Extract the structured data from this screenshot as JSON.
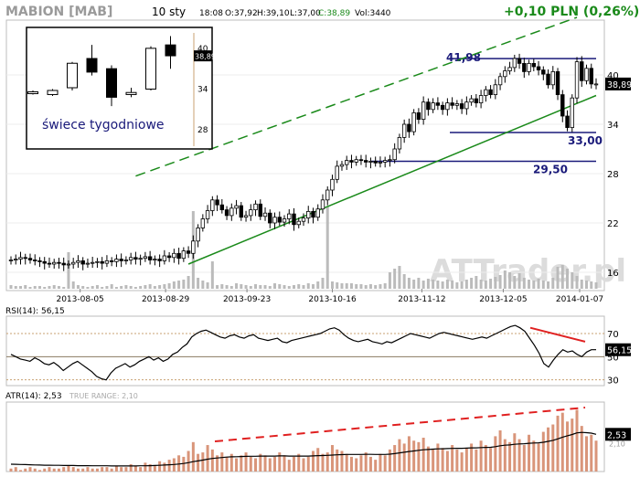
{
  "header": {
    "ticker": "MABION [MAB]",
    "interval": "10 sty",
    "time": "18:08",
    "open": "O:37,92",
    "high": "H:39,10",
    "low": "L:37,00",
    "close": "C:38,89",
    "volume": "Vol:3440",
    "change": "+0,10 PLN (0,26%)"
  },
  "colors": {
    "up_candle": "#ffffff",
    "down_candle": "#000000",
    "volume": "#bbbbbb",
    "trend_green": "#1a8a1a",
    "level_navy": "#1a1a7a",
    "rsi_line": "#000000",
    "rsi_trend": "#e02020",
    "atr_bars": "#d9957a",
    "atr_trend": "#e02020",
    "watermark": "#d8d8d8"
  },
  "watermark": "ATTrader.pl",
  "inset": {
    "caption": "świece tygodniowe",
    "last_label": "38,89",
    "ylim": [
      26,
      42
    ],
    "yticks": [
      "40",
      "34",
      "28"
    ],
    "candles": [
      {
        "o": 33.5,
        "h": 33.8,
        "l": 33.2,
        "c": 33.6
      },
      {
        "o": 33.2,
        "h": 34.0,
        "l": 33.0,
        "c": 33.8
      },
      {
        "o": 34.2,
        "h": 38.0,
        "l": 33.8,
        "c": 37.8
      },
      {
        "o": 38.5,
        "h": 40.5,
        "l": 36.0,
        "c": 36.5
      },
      {
        "o": 37.0,
        "h": 37.5,
        "l": 31.5,
        "c": 32.8
      },
      {
        "o": 33.2,
        "h": 34.2,
        "l": 32.8,
        "c": 33.5
      },
      {
        "o": 34.0,
        "h": 40.3,
        "l": 33.8,
        "c": 40.0
      },
      {
        "o": 40.5,
        "h": 41.8,
        "l": 37.0,
        "c": 38.9
      }
    ]
  },
  "chart_data": [
    {
      "type": "candlestick",
      "ylim": [
        14,
        46
      ],
      "yticks": [
        "40",
        "34",
        "28",
        "22",
        "16"
      ],
      "last_value_label": "38,89",
      "x_tick_labels": [
        "2013-08-05",
        "2013-08-29",
        "2013-09-23",
        "2013-10-16",
        "2013-11-12",
        "2013-12-05",
        "2014-01-07"
      ],
      "levels": [
        {
          "label": "41,98",
          "value": 41.98
        },
        {
          "label": "33,00",
          "value": 33.0
        },
        {
          "label": "29,50",
          "value": 29.5
        }
      ],
      "close": [
        17.5,
        17.6,
        17.8,
        17.7,
        17.5,
        17.4,
        17.3,
        17.1,
        17.0,
        17.2,
        17.1,
        16.9,
        17.0,
        17.2,
        17.4,
        17.0,
        17.1,
        17.2,
        17.3,
        17.1,
        17.4,
        17.3,
        17.6,
        17.4,
        17.5,
        17.8,
        17.6,
        17.7,
        17.9,
        17.5,
        17.6,
        17.4,
        18.0,
        17.8,
        18.3,
        17.7,
        18.6,
        18.3,
        19.8,
        21.4,
        22.5,
        23.5,
        24.8,
        24.2,
        23.6,
        22.9,
        23.8,
        24.1,
        22.7,
        22.9,
        23.6,
        24.3,
        22.8,
        23.2,
        22.0,
        22.7,
        22.1,
        22.5,
        23.1,
        21.8,
        22.2,
        22.6,
        23.4,
        22.7,
        23.7,
        24.8,
        26.0,
        27.3,
        28.9,
        29.1,
        29.6,
        29.4,
        29.7,
        29.6,
        29.4,
        29.5,
        29.3,
        29.4,
        29.6,
        29.7,
        31.0,
        32.4,
        34.0,
        33.1,
        35.4,
        34.6,
        36.7,
        35.8,
        36.6,
        36.3,
        35.8,
        36.6,
        36.3,
        36.5,
        35.9,
        36.7,
        37.1,
        36.6,
        37.5,
        38.2,
        37.6,
        38.8,
        39.8,
        40.5,
        40.9,
        42.0,
        41.4,
        40.4,
        41.4,
        41.0,
        40.6,
        40.1,
        38.8,
        40.4,
        37.6,
        35.0,
        33.6,
        37.2,
        41.6,
        39.3,
        40.8,
        38.9,
        38.9
      ],
      "volume_max": 100,
      "volume": [
        4,
        3,
        3,
        4,
        2,
        3,
        3,
        2,
        3,
        4,
        3,
        2,
        11,
        8,
        4,
        3,
        2,
        3,
        4,
        2,
        3,
        5,
        2,
        3,
        4,
        3,
        2,
        3,
        4,
        5,
        3,
        4,
        5,
        6,
        8,
        9,
        10,
        14,
        16,
        12,
        9,
        7,
        5,
        4,
        5,
        4,
        3,
        6,
        5,
        4,
        3,
        5,
        4,
        4,
        3,
        6,
        5,
        4,
        3,
        4,
        5,
        4,
        6,
        5,
        8,
        12,
        90,
        8,
        7,
        6,
        6,
        6,
        5,
        5,
        4,
        5,
        4,
        5,
        6,
        18,
        22,
        25,
        16,
        12,
        10,
        12,
        9,
        11,
        10,
        9,
        8,
        10,
        9,
        7,
        8,
        10,
        12,
        14,
        10,
        9,
        11,
        13,
        15,
        20,
        18,
        14,
        17,
        12,
        10,
        9,
        11,
        9,
        8,
        12,
        24,
        26,
        22,
        18,
        14,
        10,
        9,
        8,
        7
      ],
      "volume_spikes": [
        {
          "index": 12,
          "value": 40
        },
        {
          "index": 38,
          "value": 85
        },
        {
          "index": 42,
          "value": 30
        },
        {
          "index": 66,
          "value": 90
        }
      ]
    },
    {
      "type": "line",
      "title": "RSI(14): 56,15",
      "ylim": [
        25,
        85
      ],
      "yticks": [
        "70",
        "50",
        "30"
      ],
      "last_value_label": "56,15",
      "values": [
        52,
        50,
        48,
        47,
        46,
        49,
        47,
        44,
        43,
        45,
        42,
        38,
        41,
        44,
        46,
        43,
        40,
        37,
        33,
        31,
        30,
        36,
        40,
        42,
        44,
        41,
        43,
        46,
        48,
        50,
        47,
        49,
        46,
        48,
        52,
        54,
        58,
        61,
        67,
        70,
        72,
        73,
        71,
        69,
        67,
        66,
        68,
        69,
        67,
        66,
        68,
        69,
        66,
        65,
        64,
        65,
        66,
        63,
        62,
        64,
        65,
        66,
        67,
        68,
        69,
        70,
        72,
        74,
        75,
        73,
        69,
        66,
        64,
        63,
        64,
        65,
        63,
        62,
        61,
        63,
        62,
        64,
        66,
        68,
        70,
        69,
        68,
        67,
        66,
        68,
        70,
        71,
        70,
        69,
        68,
        67,
        66,
        65,
        66,
        67,
        66,
        68,
        70,
        72,
        74,
        76,
        77,
        75,
        72,
        66,
        60,
        53,
        44,
        41,
        47,
        52,
        56,
        54,
        55,
        52,
        50,
        54,
        56,
        56
      ]
    },
    {
      "type": "bar+line",
      "title": "ATR(14): 2,53",
      "subtitle": "TRUE RANGE: 2,10",
      "ylim": [
        0,
        4.6
      ],
      "last_value_label": "2,53",
      "second_label": "2,10",
      "true_range": [
        0.2,
        0.3,
        0.1,
        0.2,
        0.3,
        0.2,
        0.1,
        0.2,
        0.3,
        0.2,
        0.2,
        0.3,
        0.4,
        0.3,
        0.2,
        0.2,
        0.3,
        0.2,
        0.2,
        0.3,
        0.3,
        0.2,
        0.4,
        0.3,
        0.3,
        0.5,
        0.4,
        0.3,
        0.6,
        0.5,
        0.4,
        0.7,
        0.6,
        0.8,
        0.9,
        1.1,
        1.0,
        1.4,
        2.0,
        1.2,
        1.3,
        1.8,
        1.5,
        1.1,
        1.3,
        1.0,
        1.2,
        0.9,
        1.1,
        1.3,
        1.0,
        0.9,
        1.2,
        1.1,
        0.9,
        1.0,
        1.3,
        1.1,
        0.8,
        1.0,
        1.2,
        0.9,
        1.0,
        1.4,
        1.6,
        1.2,
        1.3,
        1.8,
        1.5,
        1.4,
        1.2,
        1.0,
        0.9,
        1.1,
        1.3,
        1.0,
        0.8,
        1.2,
        1.1,
        1.5,
        1.8,
        2.2,
        1.9,
        2.4,
        2.1,
        2.0,
        2.3,
        1.7,
        1.5,
        1.9,
        1.6,
        1.4,
        1.8,
        1.5,
        1.3,
        1.6,
        1.9,
        1.5,
        2.1,
        1.8,
        1.6,
        2.4,
        2.8,
        2.2,
        2.0,
        2.6,
        2.2,
        1.8,
        2.5,
        2.1,
        1.9,
        2.7,
        3.0,
        3.2,
        3.8,
        4.0,
        3.4,
        3.6,
        4.2,
        3.1,
        2.4,
        2.5,
        2.1
      ],
      "atr_line": [
        0.5,
        0.49,
        0.48,
        0.47,
        0.46,
        0.45,
        0.44,
        0.43,
        0.43,
        0.42,
        0.42,
        0.41,
        0.41,
        0.41,
        0.4,
        0.4,
        0.4,
        0.39,
        0.39,
        0.39,
        0.39,
        0.38,
        0.38,
        0.38,
        0.38,
        0.38,
        0.38,
        0.39,
        0.39,
        0.4,
        0.41,
        0.42,
        0.44,
        0.46,
        0.48,
        0.51,
        0.55,
        0.6,
        0.67,
        0.72,
        0.78,
        0.84,
        0.89,
        0.92,
        0.95,
        0.98,
        1.0,
        1.01,
        1.02,
        1.03,
        1.04,
        1.04,
        1.05,
        1.05,
        1.05,
        1.05,
        1.06,
        1.06,
        1.05,
        1.05,
        1.05,
        1.05,
        1.05,
        1.06,
        1.08,
        1.09,
        1.1,
        1.12,
        1.14,
        1.15,
        1.16,
        1.16,
        1.16,
        1.16,
        1.17,
        1.17,
        1.16,
        1.16,
        1.16,
        1.18,
        1.22,
        1.27,
        1.31,
        1.36,
        1.4,
        1.44,
        1.48,
        1.5,
        1.52,
        1.54,
        1.55,
        1.56,
        1.57,
        1.58,
        1.58,
        1.59,
        1.61,
        1.61,
        1.63,
        1.64,
        1.65,
        1.69,
        1.75,
        1.79,
        1.81,
        1.85,
        1.88,
        1.89,
        1.92,
        1.94,
        1.95,
        1.99,
        2.05,
        2.12,
        2.22,
        2.34,
        2.43,
        2.52,
        2.63,
        2.66,
        2.64,
        2.61,
        2.53
      ]
    }
  ]
}
